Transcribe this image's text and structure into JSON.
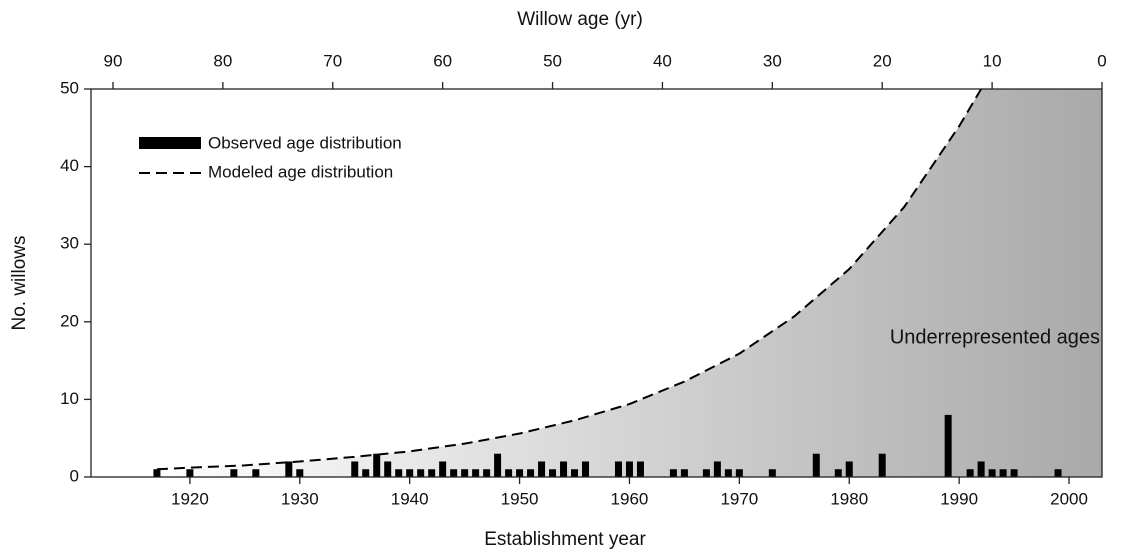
{
  "chart_data": {
    "type": "bar",
    "title": "Willow age (yr)",
    "x_label": "Establishment year",
    "y_label": "No. willows",
    "annotation": "Underrepresented ages",
    "xlim": [
      1911,
      2003
    ],
    "xticks": [
      1920,
      1930,
      1940,
      1950,
      1960,
      1970,
      1980,
      1990,
      2000
    ],
    "x2lim": [
      92,
      0
    ],
    "x2ticks": [
      90,
      80,
      70,
      60,
      50,
      40,
      30,
      20,
      10,
      0
    ],
    "ylim": [
      0,
      50
    ],
    "yticks": [
      0,
      10,
      20,
      30,
      40,
      50
    ],
    "legend": "upper left",
    "series": [
      {
        "name": "Observed age distribution",
        "color": "#000000",
        "x": [
          1917,
          1920,
          1924,
          1926,
          1929,
          1930,
          1935,
          1936,
          1937,
          1938,
          1939,
          1940,
          1941,
          1942,
          1943,
          1944,
          1945,
          1946,
          1947,
          1948,
          1949,
          1950,
          1951,
          1952,
          1953,
          1954,
          1955,
          1956,
          1959,
          1960,
          1961,
          1964,
          1965,
          1967,
          1968,
          1969,
          1970,
          1973,
          1977,
          1979,
          1980,
          1983,
          1989,
          1991,
          1992,
          1993,
          1994,
          1995,
          1999
        ],
        "values": [
          1,
          1,
          1,
          1,
          2,
          1,
          2,
          1,
          3,
          2,
          1,
          1,
          1,
          1,
          2,
          1,
          1,
          1,
          1,
          3,
          1,
          1,
          1,
          2,
          1,
          2,
          1,
          2,
          2,
          2,
          2,
          1,
          1,
          1,
          2,
          1,
          1,
          1,
          3,
          1,
          2,
          3,
          8,
          1,
          2,
          1,
          1,
          1,
          1
        ]
      },
      {
        "name": "Modeled age distribution",
        "color": "#000000",
        "x": [
          1917,
          1920,
          1925,
          1930,
          1935,
          1940,
          1945,
          1950,
          1955,
          1960,
          1965,
          1970,
          1975,
          1980,
          1985,
          1990,
          1992
        ],
        "values": [
          1.0,
          1.2,
          1.5,
          2.0,
          2.6,
          3.3,
          4.3,
          5.6,
          7.3,
          9.4,
          12.3,
          15.9,
          20.7,
          26.8,
          34.8,
          45.2,
          50
        ]
      }
    ]
  }
}
